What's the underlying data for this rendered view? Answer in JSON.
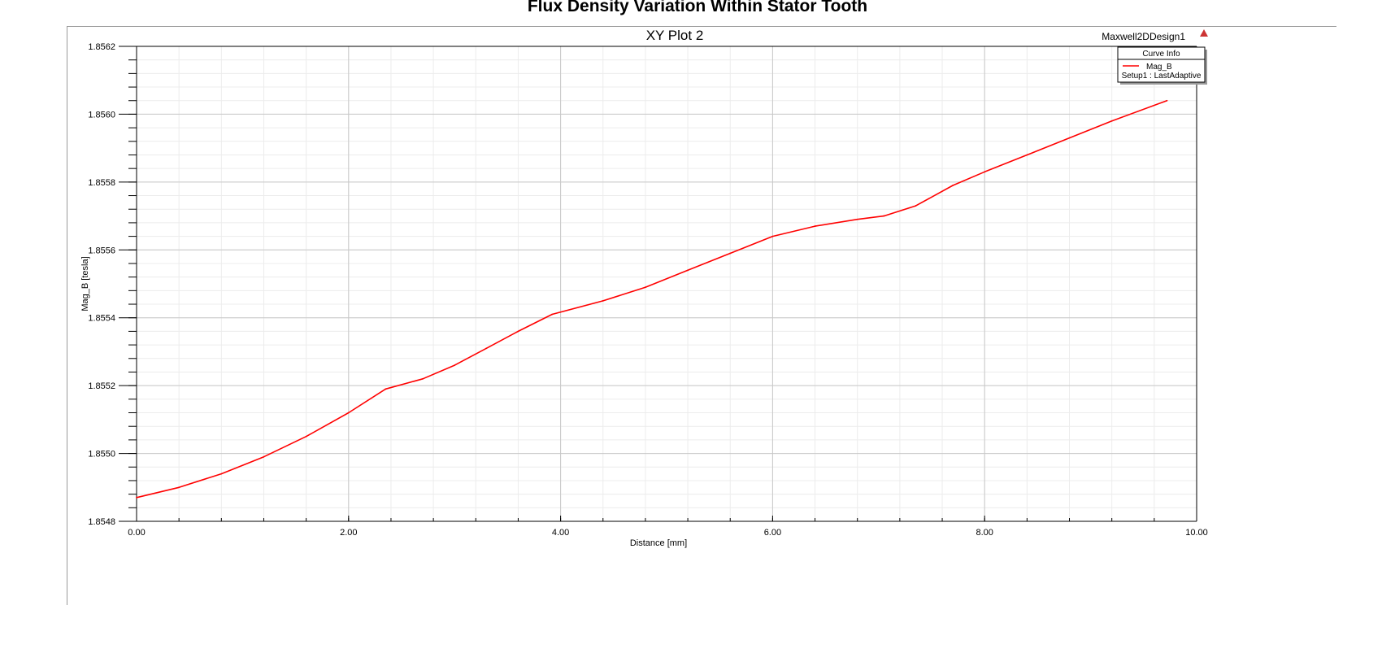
{
  "figure": {
    "title": "Flux Density Variation Within Stator Tooth"
  },
  "chart_data": {
    "type": "line",
    "title": "XY Plot 2",
    "design_name": "Maxwell2DDesign1",
    "xlabel": "Distance [mm]",
    "ylabel": "Mag_B [tesla]",
    "xlim": [
      0,
      10
    ],
    "ylim": [
      1.8548,
      1.8562
    ],
    "x_major_ticks": [
      0,
      2,
      4,
      6,
      8,
      10
    ],
    "x_tick_labels": [
      "0.00",
      "2.00",
      "4.00",
      "6.00",
      "8.00",
      "10.00"
    ],
    "y_major_ticks": [
      1.8548,
      1.855,
      1.8552,
      1.8554,
      1.8556,
      1.8558,
      1.856,
      1.8562
    ],
    "y_tick_labels": [
      "1.8548",
      "1.8550",
      "1.8552",
      "1.8554",
      "1.8556",
      "1.8558",
      "1.8560",
      "1.8562"
    ],
    "grid": true,
    "legend": {
      "title": "Curve Info",
      "position": "top-right",
      "entries": [
        {
          "name": "Mag_B",
          "subtitle": "Setup1 : LastAdaptive"
        }
      ]
    },
    "series": [
      {
        "name": "Mag_B",
        "color": "#ff0000",
        "x": [
          0.0,
          0.4,
          0.8,
          1.2,
          1.6,
          2.0,
          2.35,
          2.7,
          3.0,
          3.3,
          3.6,
          3.92,
          4.4,
          4.8,
          5.2,
          5.6,
          6.0,
          6.4,
          6.8,
          7.05,
          7.35,
          7.7,
          8.0,
          8.4,
          8.8,
          9.2,
          9.72
        ],
        "values": [
          1.85487,
          1.8549,
          1.85494,
          1.85499,
          1.85505,
          1.85512,
          1.85519,
          1.85522,
          1.85526,
          1.85531,
          1.85536,
          1.85541,
          1.85545,
          1.85549,
          1.85554,
          1.85559,
          1.85564,
          1.85567,
          1.85569,
          1.8557,
          1.85573,
          1.85579,
          1.85583,
          1.85588,
          1.85593,
          1.85598,
          1.85604
        ]
      }
    ]
  },
  "colors": {
    "curve": "#ff0000",
    "major_grid": "#c8c8c8",
    "minor_grid": "#ececec",
    "axis": "#000000",
    "logo": "#cc3333"
  }
}
